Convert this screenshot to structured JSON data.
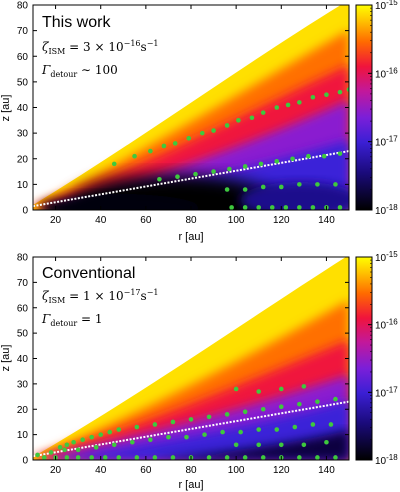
{
  "chart_data": [
    {
      "type": "heatmap",
      "title": "This work",
      "annotations": [
        {
          "symbol": "ζ",
          "sub": "ISM",
          "relation": " = ",
          "value": "3 × 10",
          "exp": "−16",
          "unit": "s",
          "unit_exp": "−1"
        },
        {
          "symbol": "Γ",
          "sub": "detour",
          "relation": " ∼ ",
          "value": "100",
          "exp": "",
          "unit": "",
          "unit_exp": ""
        }
      ],
      "xlabel": "r [au]",
      "ylabel": "z [au]",
      "xlim": [
        10,
        150
      ],
      "ylim": [
        0,
        80
      ],
      "xticks": [
        "20",
        "40",
        "60",
        "80",
        "100",
        "120",
        "140"
      ],
      "xtick_values": [
        20,
        40,
        60,
        80,
        100,
        120,
        140
      ],
      "yticks": [
        "0",
        "10",
        "20",
        "30",
        "40",
        "50",
        "60",
        "70",
        "80"
      ],
      "ytick_values": [
        0,
        10,
        20,
        30,
        40,
        50,
        60,
        70,
        80
      ],
      "colorbar": {
        "scale": "log",
        "range": [
          1e-18,
          1e-15
        ],
        "ticks": [
          {
            "base": "10",
            "exp": "-15",
            "value": 1e-15
          },
          {
            "base": "10",
            "exp": "-16",
            "value": 1e-16
          },
          {
            "base": "10",
            "exp": "-17",
            "value": 1e-17
          },
          {
            "base": "10",
            "exp": "-18",
            "value": 1e-18
          }
        ]
      },
      "white_line": {
        "x": [
          10,
          150
        ],
        "y": [
          1.5,
          23
        ]
      },
      "green_points": [
        [
          46,
          18
        ],
        [
          55,
          21
        ],
        [
          62,
          23
        ],
        [
          68,
          25
        ],
        [
          73,
          26
        ],
        [
          79,
          28
        ],
        [
          85,
          30
        ],
        [
          90,
          31
        ],
        [
          96,
          33
        ],
        [
          101,
          35
        ],
        [
          107,
          36
        ],
        [
          112,
          38
        ],
        [
          118,
          40
        ],
        [
          123,
          41
        ],
        [
          128,
          42
        ],
        [
          134,
          44
        ],
        [
          140,
          45
        ],
        [
          146,
          46
        ],
        [
          150,
          47
        ],
        [
          66,
          12
        ],
        [
          74,
          13
        ],
        [
          82,
          14
        ],
        [
          90,
          15
        ],
        [
          97,
          16
        ],
        [
          104,
          17
        ],
        [
          111,
          18
        ],
        [
          118,
          19
        ],
        [
          125,
          20
        ],
        [
          132,
          21
        ],
        [
          139,
          21
        ],
        [
          146,
          22
        ],
        [
          96,
          8
        ],
        [
          104,
          8
        ],
        [
          112,
          9
        ],
        [
          120,
          9
        ],
        [
          128,
          10
        ],
        [
          136,
          10
        ],
        [
          144,
          10
        ],
        [
          98,
          1
        ],
        [
          104,
          1
        ],
        [
          110,
          1
        ],
        [
          116,
          1
        ],
        [
          122,
          1
        ],
        [
          128,
          1
        ],
        [
          134,
          1
        ],
        [
          140,
          1
        ],
        [
          146,
          1
        ]
      ]
    },
    {
      "type": "heatmap",
      "title": "Conventional",
      "annotations": [
        {
          "symbol": "ζ",
          "sub": "ISM",
          "relation": " = ",
          "value": "1 × 10",
          "exp": "−17",
          "unit": "s",
          "unit_exp": "−1"
        },
        {
          "symbol": "Γ",
          "sub": "detour",
          "relation": " = ",
          "value": "1",
          "exp": "",
          "unit": "",
          "unit_exp": ""
        }
      ],
      "xlabel": "r [au]",
      "ylabel": "z [au]",
      "xlim": [
        10,
        150
      ],
      "ylim": [
        0,
        80
      ],
      "xticks": [
        "20",
        "40",
        "60",
        "80",
        "100",
        "120",
        "140"
      ],
      "xtick_values": [
        20,
        40,
        60,
        80,
        100,
        120,
        140
      ],
      "yticks": [
        "0",
        "10",
        "20",
        "30",
        "40",
        "50",
        "60",
        "70",
        "80"
      ],
      "ytick_values": [
        0,
        10,
        20,
        30,
        40,
        50,
        60,
        70,
        80
      ],
      "colorbar": {
        "scale": "log",
        "range": [
          1e-18,
          1e-15
        ],
        "ticks": [
          {
            "base": "10",
            "exp": "-15",
            "value": 1e-15
          },
          {
            "base": "10",
            "exp": "-16",
            "value": 1e-16
          },
          {
            "base": "10",
            "exp": "-17",
            "value": 1e-17
          },
          {
            "base": "10",
            "exp": "-18",
            "value": 1e-18
          }
        ]
      },
      "white_line": {
        "x": [
          10,
          150
        ],
        "y": [
          1.5,
          23
        ]
      },
      "green_points": [
        [
          12,
          2
        ],
        [
          18,
          3
        ],
        [
          22,
          5
        ],
        [
          25,
          6
        ],
        [
          28,
          7
        ],
        [
          32,
          8
        ],
        [
          36,
          9
        ],
        [
          40,
          10
        ],
        [
          44,
          11
        ],
        [
          48,
          12
        ],
        [
          56,
          13
        ],
        [
          64,
          14
        ],
        [
          72,
          15
        ],
        [
          80,
          16
        ],
        [
          88,
          17
        ],
        [
          96,
          18
        ],
        [
          104,
          19
        ],
        [
          112,
          20
        ],
        [
          120,
          21
        ],
        [
          128,
          22
        ],
        [
          136,
          23
        ],
        [
          144,
          24
        ],
        [
          15,
          1
        ],
        [
          20,
          1
        ],
        [
          25,
          1
        ],
        [
          30,
          1
        ],
        [
          36,
          1
        ],
        [
          42,
          1
        ],
        [
          48,
          1
        ],
        [
          56,
          1
        ],
        [
          64,
          1
        ],
        [
          72,
          1
        ],
        [
          80,
          1
        ],
        [
          88,
          1
        ],
        [
          96,
          1
        ],
        [
          104,
          1
        ],
        [
          112,
          1
        ],
        [
          120,
          1
        ],
        [
          128,
          1
        ],
        [
          136,
          1
        ],
        [
          144,
          1
        ],
        [
          24,
          4
        ],
        [
          30,
          4
        ],
        [
          38,
          5
        ],
        [
          46,
          6
        ],
        [
          54,
          7
        ],
        [
          62,
          8
        ],
        [
          70,
          9
        ],
        [
          78,
          9
        ],
        [
          86,
          10
        ],
        [
          94,
          11
        ],
        [
          102,
          11
        ],
        [
          110,
          12
        ],
        [
          118,
          12
        ],
        [
          126,
          13
        ],
        [
          134,
          14
        ],
        [
          142,
          14
        ],
        [
          100,
          28
        ],
        [
          110,
          27
        ],
        [
          120,
          28
        ],
        [
          130,
          29
        ],
        [
          100,
          6
        ],
        [
          110,
          6
        ],
        [
          120,
          6
        ],
        [
          130,
          6
        ],
        [
          140,
          7
        ]
      ]
    }
  ]
}
